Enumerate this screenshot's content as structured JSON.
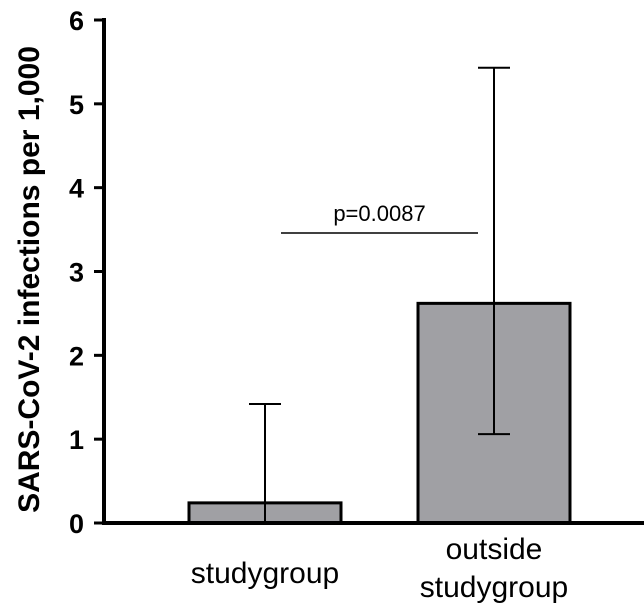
{
  "chart_data": {
    "type": "bar",
    "title": "",
    "xlabel": "",
    "ylabel": "SARS-CoV-2 infections per 1,000",
    "ylim": [
      0,
      6
    ],
    "yticks": [
      "0",
      "1",
      "2",
      "3",
      "4",
      "5",
      "6"
    ],
    "categories": [
      {
        "lines": [
          "studygroup"
        ]
      },
      {
        "lines": [
          "outside",
          "studygroup"
        ]
      }
    ],
    "values": [
      0.24,
      2.62
    ],
    "error_low": [
      0.0,
      1.06
    ],
    "error_high": [
      1.42,
      5.43
    ],
    "bar_color": "#a0a0a4",
    "annotation": {
      "text": "p=0.0087"
    },
    "grid": false,
    "legend": "none"
  }
}
